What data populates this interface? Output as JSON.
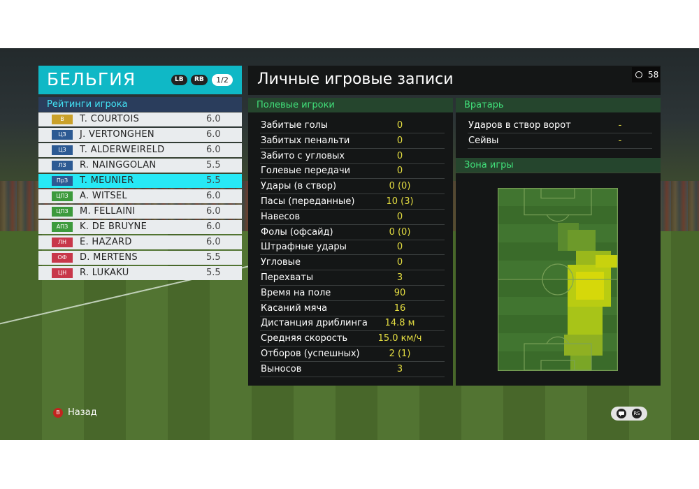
{
  "team": {
    "name": "БЕЛЬГИЯ",
    "lb_label": "LB",
    "rb_label": "RB",
    "page": "1/2"
  },
  "ratings_title": "Рейтинги игрока",
  "players": [
    {
      "pos": "В",
      "pos_color": "#caa12a",
      "name": "T. COURTOIS",
      "rating": "6.0"
    },
    {
      "pos": "ЦЗ",
      "pos_color": "#2c5a93",
      "name": "J. VERTONGHEN",
      "rating": "6.0"
    },
    {
      "pos": "ЦЗ",
      "pos_color": "#2c5a93",
      "name": "T. ALDERWEIRELD",
      "rating": "6.0"
    },
    {
      "pos": "ЛЗ",
      "pos_color": "#2c5a93",
      "name": "R. NAINGGOLAN",
      "rating": "5.5"
    },
    {
      "pos": "ПрЗ",
      "pos_color": "#2c5a93",
      "name": "T. MEUNIER",
      "rating": "5.5",
      "selected": true
    },
    {
      "pos": "ЦПЗ",
      "pos_color": "#3c9a3c",
      "name": "A. WITSEL",
      "rating": "6.0"
    },
    {
      "pos": "ЦПЗ",
      "pos_color": "#3c9a3c",
      "name": "M. FELLAINI",
      "rating": "6.0"
    },
    {
      "pos": "АПЗ",
      "pos_color": "#3c9a3c",
      "name": "K. DE BRUYNE",
      "rating": "6.0"
    },
    {
      "pos": "ЛН",
      "pos_color": "#c8374a",
      "name": "E. HAZARD",
      "rating": "6.0"
    },
    {
      "pos": "ОФ",
      "pos_color": "#c8374a",
      "name": "D. MERTENS",
      "rating": "5.5"
    },
    {
      "pos": "ЦН",
      "pos_color": "#c8374a",
      "name": "R. LUKAKU",
      "rating": "5.5"
    }
  ],
  "main_title": "Личные игровые записи",
  "timer": "58",
  "field_section": {
    "title": "Полевые игроки",
    "stats": [
      {
        "label": "Забитые голы",
        "value": "0"
      },
      {
        "label": "Забитых пенальти",
        "value": "0"
      },
      {
        "label": "Забито с угловых",
        "value": "0"
      },
      {
        "label": "Голевые передачи",
        "value": "0"
      },
      {
        "label": "Удары (в створ)",
        "value": "0 (0)"
      },
      {
        "label": "Пасы (переданные)",
        "value": "10 (3)"
      },
      {
        "label": "Навесов",
        "value": "0"
      },
      {
        "label": "Фолы (офсайд)",
        "value": "0 (0)"
      },
      {
        "label": "Штрафные удары",
        "value": "0"
      },
      {
        "label": "Угловые",
        "value": "0"
      },
      {
        "label": "Перехваты",
        "value": "3"
      },
      {
        "label": "Время на поле",
        "value": "90"
      },
      {
        "label": "Касаний мяча",
        "value": "16"
      },
      {
        "label": "Дистанция дриблинга",
        "value": "14.8 м"
      },
      {
        "label": "Средняя скорость",
        "value": "15.0 км/ч"
      },
      {
        "label": "Отборов (успешных)",
        "value": "2 (1)"
      },
      {
        "label": "Выносов",
        "value": "3"
      }
    ]
  },
  "gk_section": {
    "title": "Вратарь",
    "stats": [
      {
        "label": "Ударов в створ ворот",
        "value": "-"
      },
      {
        "label": "Сейвы",
        "value": "-"
      }
    ]
  },
  "zone_section": {
    "title": "Зона игры"
  },
  "footer": {
    "back_button": "B",
    "back_label": "Назад",
    "icon_left": "chat-icon",
    "icon_right": "rs-icon",
    "rs_label": "RS"
  }
}
